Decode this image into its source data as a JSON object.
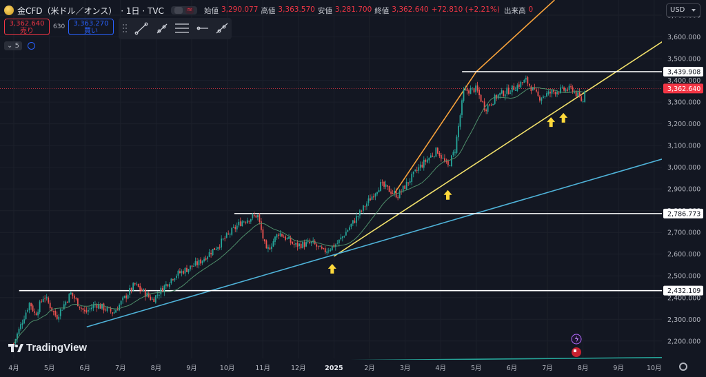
{
  "header": {
    "symbol": "金CFD（米ドル／オンス）",
    "interval": "· 1日 · TVC",
    "ohlc": [
      {
        "label": "始値",
        "value": "3,290.077"
      },
      {
        "label": "高値",
        "value": "3,363.570"
      },
      {
        "label": "安値",
        "value": "3,281.700"
      },
      {
        "label": "終値",
        "value": "3,362.640"
      }
    ],
    "change": "+72.810 (+2.21%)",
    "volume_label": "出来高",
    "volume_value": "0"
  },
  "trade": {
    "sell_price": "3,362.640",
    "sell_label": "売り",
    "spread": "630",
    "buy_price": "3,363.270",
    "buy_label": "買い"
  },
  "indicators": {
    "count": "5"
  },
  "currency": "USD",
  "logo": "TradingView",
  "colors": {
    "background": "#131722",
    "up": "#26a69a",
    "down": "#ef5350",
    "ma": "#4f8f6b",
    "white_line": "#ffffff",
    "orange_line": "#f7a23b",
    "yellow_line": "#f2e16b",
    "blue_line": "#4fb3d9",
    "arrow": "#ffd93b",
    "last_price_tag": "#f23645"
  },
  "chart_data": {
    "type": "candlestick",
    "ylim": [
      2120,
      3770
    ],
    "y_ticks": [
      2200,
      2300,
      2400,
      2500,
      2600,
      2700,
      2800,
      2900,
      3000,
      3100,
      3200,
      3300,
      3400,
      3500,
      3600,
      3700
    ],
    "y_tick_labels": [
      "2,200.000",
      "2,300.000",
      "2,400.000",
      "2,500.000",
      "2,600.000",
      "2,700.000",
      "2,800.000",
      "2,900.000",
      "3,000.000",
      "3,100.000",
      "3,200.000",
      "3,300.000",
      "3,400.000",
      "3,500.000",
      "3,600.000",
      "3,700.000"
    ],
    "x_ticks": [
      "4月",
      "5月",
      "6月",
      "7月",
      "8月",
      "9月",
      "10月",
      "11月",
      "12月",
      "2025",
      "2月",
      "3月",
      "4月",
      "5月",
      "6月",
      "7月",
      "8月",
      "9月",
      "10月"
    ],
    "price_path": [
      {
        "m": 0.0,
        "p": 2190
      },
      {
        "m": 0.45,
        "p": 2380
      },
      {
        "m": 0.6,
        "p": 2320
      },
      {
        "m": 0.85,
        "p": 2410
      },
      {
        "m": 1.2,
        "p": 2310
      },
      {
        "m": 1.6,
        "p": 2420
      },
      {
        "m": 2.0,
        "p": 2330
      },
      {
        "m": 2.3,
        "p": 2370
      },
      {
        "m": 2.8,
        "p": 2330
      },
      {
        "m": 3.4,
        "p": 2460
      },
      {
        "m": 3.9,
        "p": 2390
      },
      {
        "m": 4.5,
        "p": 2500
      },
      {
        "m": 5.2,
        "p": 2560
      },
      {
        "m": 5.8,
        "p": 2650
      },
      {
        "m": 6.4,
        "p": 2750
      },
      {
        "m": 6.85,
        "p": 2780
      },
      {
        "m": 7.1,
        "p": 2610
      },
      {
        "m": 7.45,
        "p": 2700
      },
      {
        "m": 7.9,
        "p": 2640
      },
      {
        "m": 8.4,
        "p": 2650
      },
      {
        "m": 8.7,
        "p": 2610
      },
      {
        "m": 9.1,
        "p": 2650
      },
      {
        "m": 9.6,
        "p": 2760
      },
      {
        "m": 10.3,
        "p": 2920
      },
      {
        "m": 10.8,
        "p": 2870
      },
      {
        "m": 11.4,
        "p": 3000
      },
      {
        "m": 11.9,
        "p": 3080
      },
      {
        "m": 12.2,
        "p": 3000
      },
      {
        "m": 12.4,
        "p": 3080
      },
      {
        "m": 12.65,
        "p": 3350
      },
      {
        "m": 13.0,
        "p": 3360
      },
      {
        "m": 13.25,
        "p": 3270
      },
      {
        "m": 13.6,
        "p": 3330
      },
      {
        "m": 14.0,
        "p": 3360
      },
      {
        "m": 14.4,
        "p": 3400
      },
      {
        "m": 14.75,
        "p": 3320
      },
      {
        "m": 15.2,
        "p": 3350
      },
      {
        "m": 15.7,
        "p": 3360
      },
      {
        "m": 16.0,
        "p": 3300
      },
      {
        "m": 16.05,
        "p": 3362
      }
    ],
    "horizontal_levels": [
      {
        "value": 3439.908,
        "label": "3,439.908",
        "start_m": 12.6
      },
      {
        "value": 2786.773,
        "label": "2,786.773",
        "start_m": 6.2
      },
      {
        "value": 2432.109,
        "label": "2,432.109",
        "start_m": 0.15
      }
    ],
    "trendlines": [
      {
        "name": "orange",
        "points": [
          {
            "m": 10.7,
            "p": 2880
          },
          {
            "m": 13.0,
            "p": 3440
          },
          {
            "m": 15.2,
            "p": 3770
          }
        ]
      },
      {
        "name": "yellow",
        "points": [
          {
            "m": 9.0,
            "p": 2590
          },
          {
            "m": 18.9,
            "p": 3650
          }
        ]
      },
      {
        "name": "blue",
        "points": [
          {
            "m": 2.05,
            "p": 2265
          },
          {
            "m": 18.9,
            "p": 3070
          }
        ]
      },
      {
        "name": "green",
        "points": [
          {
            "m": 2.0,
            "p": 2100
          },
          {
            "m": 18.9,
            "p": 2125
          }
        ]
      }
    ],
    "arrows": [
      {
        "m": 8.95,
        "p": 2555
      },
      {
        "m": 12.2,
        "p": 2895
      },
      {
        "m": 15.1,
        "p": 3230
      },
      {
        "m": 15.45,
        "p": 3250
      }
    ],
    "last_price": {
      "value": 3362.64,
      "label": "3,362.640"
    }
  }
}
